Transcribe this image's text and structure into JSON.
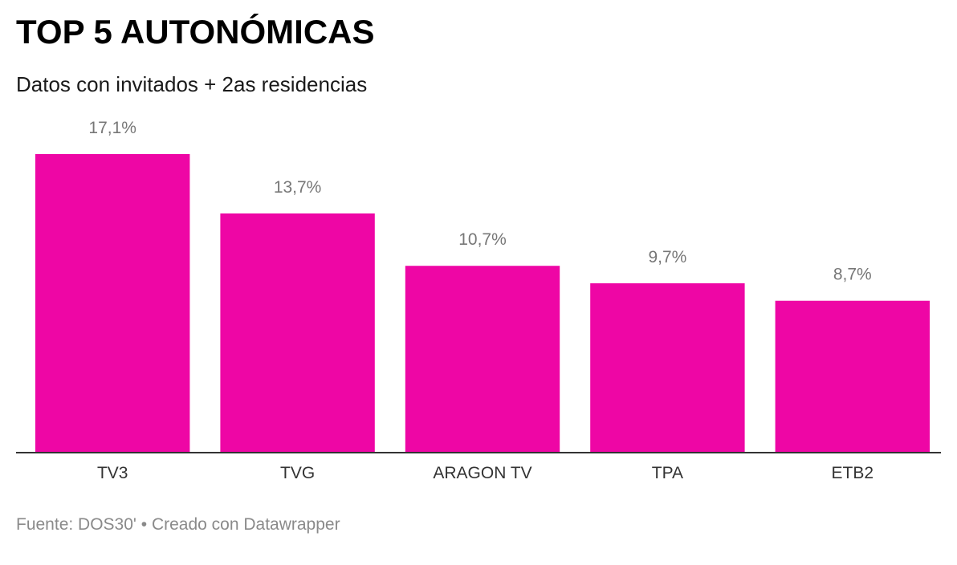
{
  "header": {
    "title": "TOP 5 AUTONÓMICAS",
    "subtitle": "Datos con invitados + 2as residencias"
  },
  "chart_data": {
    "type": "bar",
    "categories": [
      "TV3",
      "TVG",
      "ARAGON TV",
      "TPA",
      "ETB2"
    ],
    "values": [
      17.1,
      13.7,
      10.7,
      9.7,
      8.7
    ],
    "value_labels": [
      "17,1%",
      "13,7%",
      "10,7%",
      "9,7%",
      "8,7%"
    ],
    "ylim": [
      0,
      17.1
    ],
    "grid": false,
    "bar_color": "#ee06a5",
    "label_color": "#777777",
    "axis_color": "#333333"
  },
  "footer": {
    "source": "Fuente: DOS30' • Creado con Datawrapper"
  }
}
